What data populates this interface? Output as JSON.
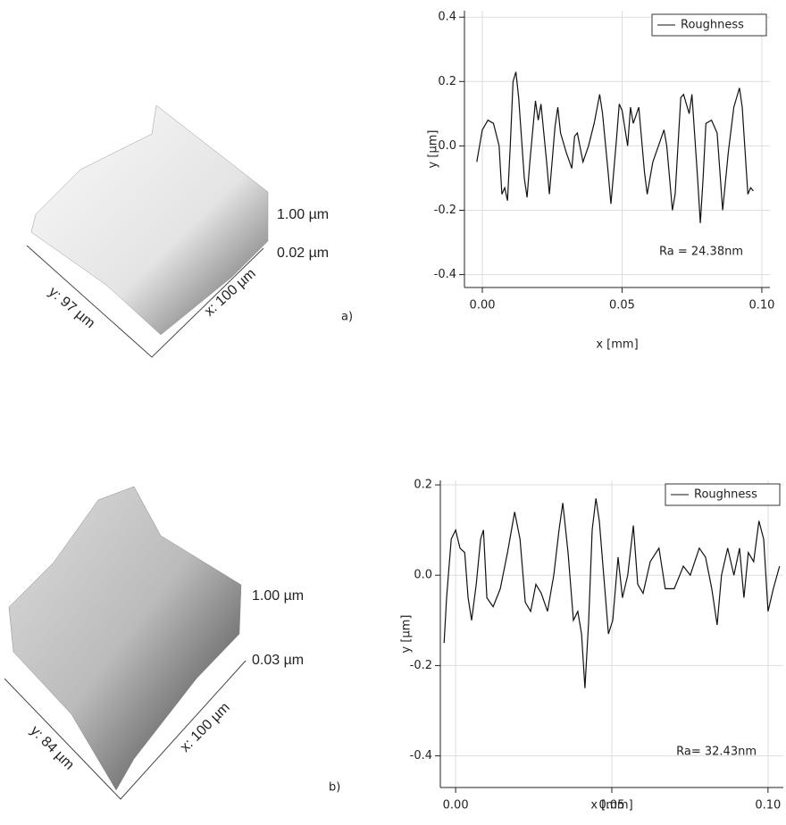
{
  "chart_data": [
    {
      "type": "line",
      "panel": "a)",
      "xlabel": "x [mm]",
      "ylabel": "y [µm]",
      "annotation": "Ra = 24.38nm",
      "grid": true,
      "legend": "upper right",
      "xlim": [
        -0.0064,
        0.1029
      ],
      "ylim": [
        -0.44,
        0.42
      ],
      "xticks": [
        {
          "value": 0,
          "label": "0.00"
        },
        {
          "value": 0.05,
          "label": "0.05"
        },
        {
          "value": 0.1,
          "label": "0.10"
        }
      ],
      "yticks": [
        {
          "value": -0.4,
          "label": "-0.4"
        },
        {
          "value": -0.2,
          "label": "-0.2"
        },
        {
          "value": 0,
          "label": "0.0"
        },
        0.2,
        0.4
      ],
      "x": [
        -0.002,
        0.0,
        0.002,
        0.004,
        0.006,
        0.007,
        0.008,
        0.009,
        0.01,
        0.011,
        0.012,
        0.013,
        0.015,
        0.016,
        0.017,
        0.019,
        0.02,
        0.021,
        0.023,
        0.024,
        0.026,
        0.027,
        0.028,
        0.03,
        0.032,
        0.033,
        0.034,
        0.036,
        0.038,
        0.04,
        0.042,
        0.043,
        0.045,
        0.046,
        0.048,
        0.049,
        0.05,
        0.052,
        0.053,
        0.054,
        0.056,
        0.058,
        0.059,
        0.061,
        0.063,
        0.065,
        0.066,
        0.068,
        0.069,
        0.071,
        0.072,
        0.074,
        0.075,
        0.077,
        0.078,
        0.079,
        0.08,
        0.082,
        0.084,
        0.086,
        0.088,
        0.09,
        0.092,
        0.093,
        0.095,
        0.096,
        0.097
      ],
      "series": [
        {
          "name": "Roughness",
          "color": "#111111",
          "values": [
            -0.05,
            0.05,
            0.08,
            0.07,
            0.0,
            -0.15,
            -0.13,
            -0.17,
            0.0,
            0.2,
            0.23,
            0.15,
            -0.1,
            -0.16,
            -0.05,
            0.14,
            0.08,
            0.13,
            -0.05,
            -0.15,
            0.06,
            0.12,
            0.04,
            -0.02,
            -0.07,
            0.03,
            0.04,
            -0.05,
            0.0,
            0.07,
            0.16,
            0.1,
            -0.08,
            -0.18,
            0.02,
            0.13,
            0.11,
            0.0,
            0.12,
            0.07,
            0.12,
            -0.08,
            -0.15,
            -0.05,
            0.0,
            0.05,
            0.0,
            -0.2,
            -0.15,
            0.15,
            0.16,
            0.1,
            0.16,
            -0.1,
            -0.24,
            -0.1,
            0.07,
            0.08,
            0.04,
            -0.2,
            -0.02,
            0.12,
            0.18,
            0.12,
            -0.15,
            -0.13,
            -0.14
          ]
        }
      ]
    },
    {
      "type": "line",
      "panel": "b)",
      "xlabel": "x [mm]",
      "ylabel": "y [µm]",
      "annotation": "Ra= 32.43nm",
      "grid": true,
      "legend": "upper right",
      "xlim": [
        -0.0049,
        0.1049
      ],
      "ylim": [
        -0.47,
        0.21
      ],
      "xticks": [
        {
          "value": 0,
          "label": "0.00"
        },
        {
          "value": 0.05,
          "label": "0.05"
        },
        {
          "value": 0.1,
          "label": "0.10"
        }
      ],
      "yticks": [
        {
          "value": -0.4,
          "label": "-0.4"
        },
        {
          "value": -0.2,
          "label": "-0.2"
        },
        {
          "value": 0,
          "label": "0.0"
        },
        0.2
      ],
      "x": [
        -0.0037,
        -0.0029,
        -0.0014,
        0.0,
        0.0014,
        0.0029,
        0.004,
        0.0051,
        0.0066,
        0.008,
        0.0089,
        0.01,
        0.012,
        0.0143,
        0.0166,
        0.0189,
        0.0206,
        0.0223,
        0.024,
        0.0257,
        0.0274,
        0.0294,
        0.0314,
        0.0331,
        0.0343,
        0.036,
        0.0377,
        0.0391,
        0.0403,
        0.0414,
        0.0426,
        0.0437,
        0.0449,
        0.046,
        0.0474,
        0.0489,
        0.0503,
        0.052,
        0.0534,
        0.0551,
        0.0569,
        0.0583,
        0.06,
        0.0623,
        0.0651,
        0.0671,
        0.07,
        0.0729,
        0.0751,
        0.078,
        0.08,
        0.082,
        0.0837,
        0.0851,
        0.0871,
        0.0891,
        0.0909,
        0.0923,
        0.0937,
        0.0954,
        0.0971,
        0.0986,
        0.1,
        0.1017,
        0.1037
      ],
      "series": [
        {
          "name": "Roughness",
          "color": "#111111",
          "values": [
            -0.15,
            -0.05,
            0.08,
            0.1,
            0.06,
            0.05,
            -0.05,
            -0.1,
            -0.02,
            0.08,
            0.1,
            -0.05,
            -0.07,
            -0.03,
            0.05,
            0.14,
            0.08,
            -0.06,
            -0.08,
            -0.02,
            -0.04,
            -0.08,
            0.0,
            0.1,
            0.16,
            0.05,
            -0.1,
            -0.08,
            -0.13,
            -0.25,
            -0.1,
            0.1,
            0.17,
            0.12,
            0.0,
            -0.13,
            -0.1,
            0.04,
            -0.05,
            0.0,
            0.11,
            -0.02,
            -0.04,
            0.03,
            0.06,
            -0.03,
            -0.03,
            0.02,
            0.0,
            0.06,
            0.04,
            -0.03,
            -0.11,
            0.0,
            0.06,
            0.0,
            0.06,
            -0.05,
            0.05,
            0.03,
            0.12,
            0.08,
            -0.08,
            -0.03,
            0.02
          ]
        }
      ]
    }
  ],
  "surfaces": [
    {
      "z_top": "1.00 µm",
      "z_bottom": "0.02 µm",
      "y_size": "y: 97 µm",
      "x_size": "x: 100 µm"
    },
    {
      "z_top": "1.00 µm",
      "z_bottom": "0.03 µm",
      "y_size": "y: 84 µm",
      "x_size": "x: 100 µm"
    }
  ]
}
